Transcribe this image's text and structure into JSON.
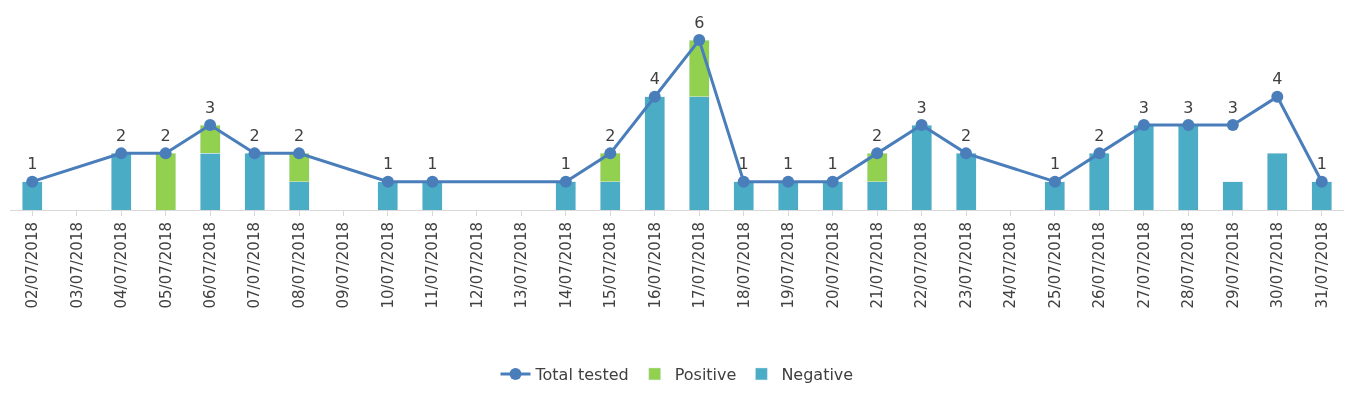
{
  "chart_data": {
    "type": "bar",
    "stacked": true,
    "tick_labels": "x",
    "legend": "bottom",
    "categories": [
      "02/07/2018",
      "03/07/2018",
      "04/07/2018",
      "05/07/2018",
      "06/07/2018",
      "07/07/2018",
      "08/07/2018",
      "09/07/2018",
      "10/07/2018",
      "11/07/2018",
      "12/07/2018",
      "13/07/2018",
      "14/07/2018",
      "15/07/2018",
      "16/07/2018",
      "17/07/2018",
      "18/07/2018",
      "19/07/2018",
      "20/07/2018",
      "21/07/2018",
      "22/07/2018",
      "23/07/2018",
      "24/07/2018",
      "25/07/2018",
      "26/07/2018",
      "27/07/2018",
      "28/07/2018",
      "29/07/2018",
      "30/07/2018",
      "31/07/2018"
    ],
    "series": [
      {
        "name": "Negative",
        "color": "#4bacc6",
        "values": [
          1,
          null,
          2,
          null,
          2,
          2,
          1,
          null,
          1,
          1,
          null,
          null,
          1,
          1,
          4,
          4,
          1,
          1,
          1,
          1,
          3,
          2,
          null,
          1,
          2,
          3,
          3,
          1,
          2,
          1
        ]
      },
      {
        "name": "Positive",
        "color": "#92d050",
        "values": [
          null,
          null,
          null,
          2,
          1,
          null,
          1,
          null,
          null,
          null,
          null,
          null,
          null,
          1,
          null,
          2,
          null,
          null,
          null,
          1,
          null,
          null,
          null,
          null,
          null,
          null,
          null,
          null,
          null,
          null
        ]
      },
      {
        "name": "Total tested",
        "type": "line",
        "marker": "circle",
        "color": "#4a7ebb",
        "values": [
          1,
          null,
          2,
          2,
          3,
          2,
          2,
          null,
          1,
          1,
          null,
          null,
          1,
          2,
          4,
          6,
          1,
          1,
          1,
          2,
          3,
          2,
          null,
          1,
          2,
          3,
          3,
          3,
          4,
          1
        ],
        "value_labels": [
          "1",
          null,
          "2",
          "2",
          "3",
          "2",
          "2",
          null,
          "1",
          "1",
          null,
          null,
          "1",
          "2",
          "4",
          "6",
          "1",
          "1",
          "1",
          "2",
          "3",
          "2",
          null,
          "1",
          "2",
          "3",
          "3",
          "3",
          "4",
          "1"
        ]
      }
    ]
  }
}
